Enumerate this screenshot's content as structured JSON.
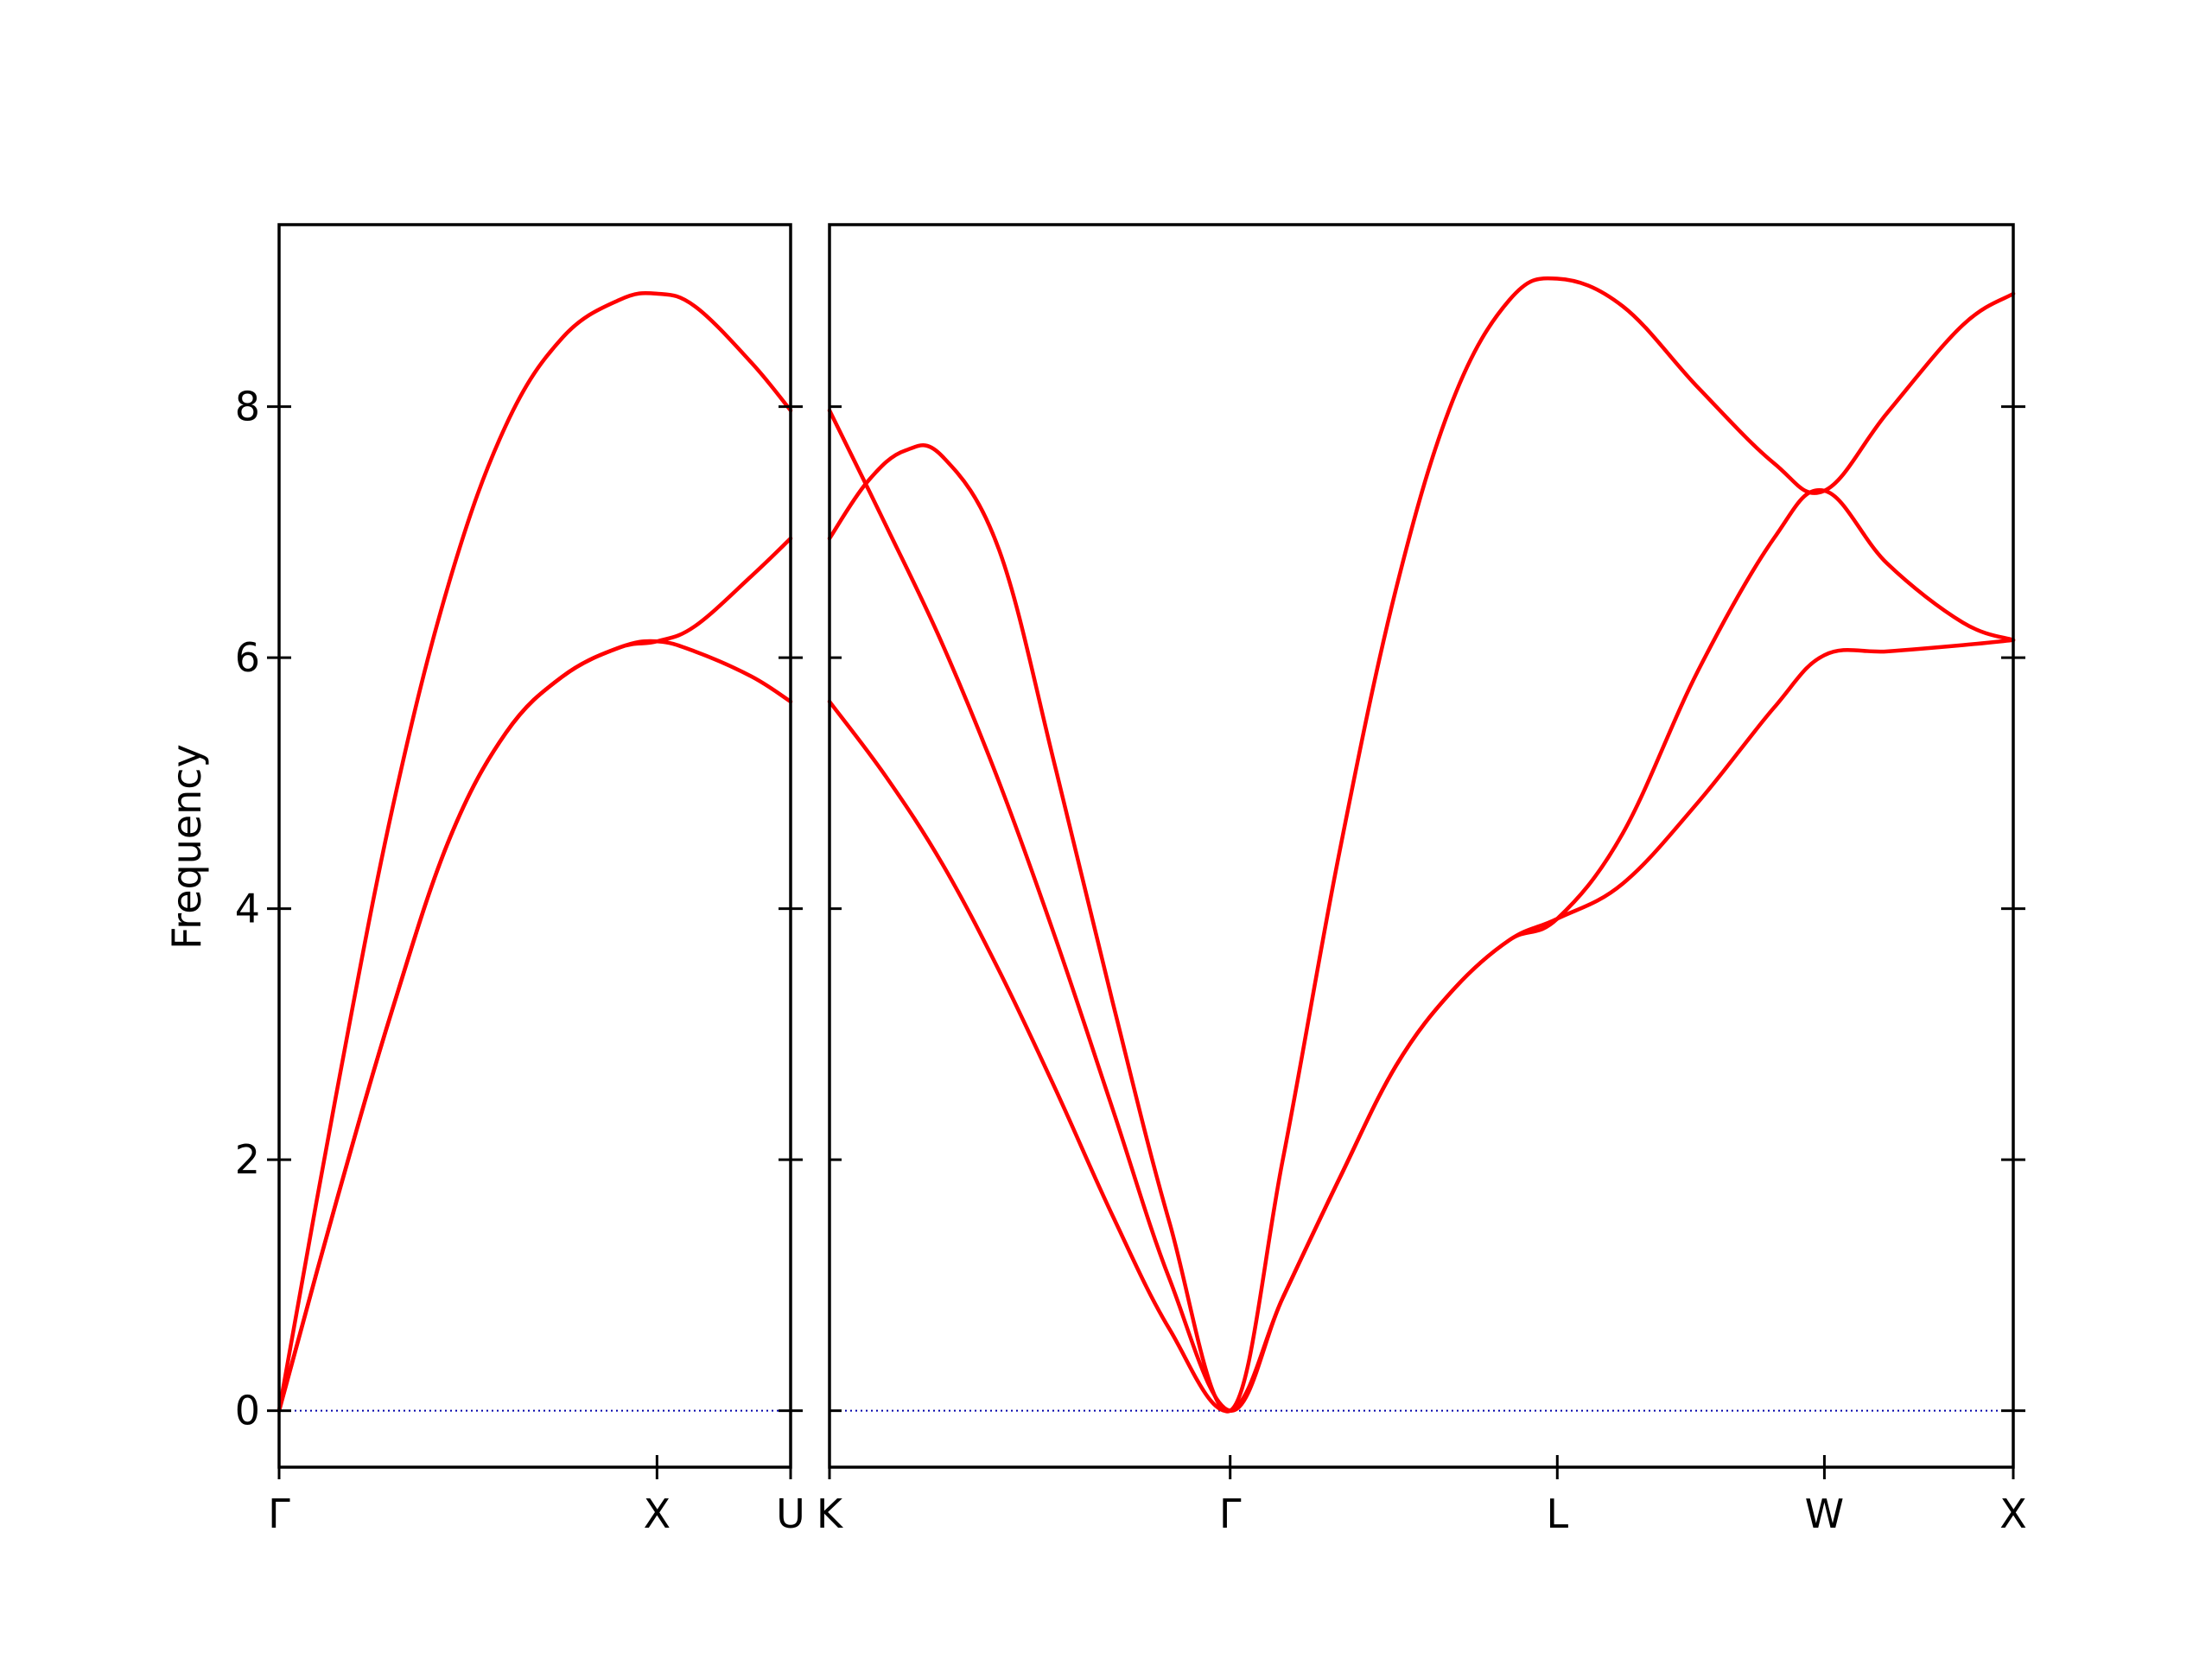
{
  "chart_data": {
    "type": "line",
    "ylabel": "Frequency",
    "ylim": [
      -0.45,
      9.45
    ],
    "yticks": [
      0,
      2,
      4,
      6,
      8
    ],
    "band_color": "#ff0000",
    "zero_line_color": "#0000aa",
    "panels": [
      {
        "name": "left",
        "x_ticks": [
          {
            "pos": 0,
            "label": "Γ"
          },
          {
            "pos": 1.0,
            "label": "X"
          },
          {
            "pos": 1.3536,
            "label": "U"
          }
        ],
        "xlim": [
          0,
          1.3536
        ],
        "series": [
          {
            "x": [
              0,
              0.15,
              0.3,
              0.45,
              0.6,
              0.75,
              0.9,
              1.0,
              1.1,
              1.25,
              1.3536
            ],
            "values": [
              0,
              1.65,
              3.2,
              4.55,
              5.4,
              5.85,
              6.08,
              6.13,
              6.05,
              5.85,
              5.65
            ]
          },
          {
            "x": [
              0,
              0.15,
              0.3,
              0.45,
              0.6,
              0.75,
              0.9,
              1.0,
              1.1,
              1.25,
              1.3536
            ],
            "values": [
              0,
              1.65,
              3.2,
              4.55,
              5.4,
              5.85,
              6.08,
              6.13,
              6.25,
              6.65,
              6.95
            ]
          },
          {
            "x": [
              0,
              0.15,
              0.3,
              0.45,
              0.6,
              0.75,
              0.9,
              1.0,
              1.1,
              1.25,
              1.3536
            ],
            "values": [
              0,
              2.5,
              4.8,
              6.6,
              7.85,
              8.55,
              8.85,
              8.9,
              8.8,
              8.35,
              7.97
            ]
          }
        ]
      },
      {
        "name": "right",
        "x_ticks": [
          {
            "pos": 0,
            "label": "K"
          },
          {
            "pos": 1.0607,
            "label": "Γ"
          },
          {
            "pos": 1.9267,
            "label": "L"
          },
          {
            "pos": 2.6338,
            "label": "W"
          },
          {
            "pos": 3.1338,
            "label": "X"
          }
        ],
        "xlim": [
          0,
          3.1338
        ],
        "series": [
          {
            "x": [
              0,
              0.15,
              0.3,
              0.45,
              0.6,
              0.75,
              0.9,
              1.0607,
              1.2,
              1.35,
              1.5,
              1.65,
              1.8,
              1.9267,
              2.1,
              2.3,
              2.5,
              2.6338,
              2.8,
              3.0,
              3.1338
            ],
            "values": [
              5.65,
              5.05,
              4.35,
              3.5,
              2.55,
              1.55,
              0.65,
              0,
              0.9,
              1.85,
              2.75,
              3.35,
              3.75,
              3.92,
              4.2,
              4.85,
              5.6,
              6.02,
              6.05,
              6.1,
              6.14
            ]
          },
          {
            "x": [
              0,
              0.15,
              0.3,
              0.45,
              0.6,
              0.75,
              0.9,
              1.0607,
              1.2,
              1.35,
              1.5,
              1.65,
              1.8,
              1.9267,
              2.1,
              2.3,
              2.5,
              2.6338,
              2.8,
              3.0,
              3.1338
            ],
            "values": [
              7.97,
              7.05,
              6.1,
              5.0,
              3.75,
              2.4,
              1.05,
              0,
              0.9,
              1.85,
              2.75,
              3.35,
              3.75,
              3.92,
              4.6,
              5.9,
              6.95,
              7.33,
              6.75,
              6.28,
              6.14
            ]
          },
          {
            "x": [
              0,
              0.1,
              0.2,
              0.3,
              0.45,
              0.6,
              0.75,
              0.9,
              1.0607,
              1.2,
              1.35,
              1.5,
              1.65,
              1.8,
              1.9267,
              2.1,
              2.3,
              2.5,
              2.6338,
              2.8,
              3.0,
              3.1338
            ],
            "values": [
              6.95,
              7.4,
              7.65,
              7.6,
              6.85,
              5.1,
              3.25,
              1.5,
              0,
              2.0,
              4.45,
              6.55,
              8.05,
              8.85,
              9.02,
              8.8,
              8.15,
              7.55,
              7.33,
              7.95,
              8.65,
              8.9
            ]
          }
        ]
      }
    ]
  }
}
